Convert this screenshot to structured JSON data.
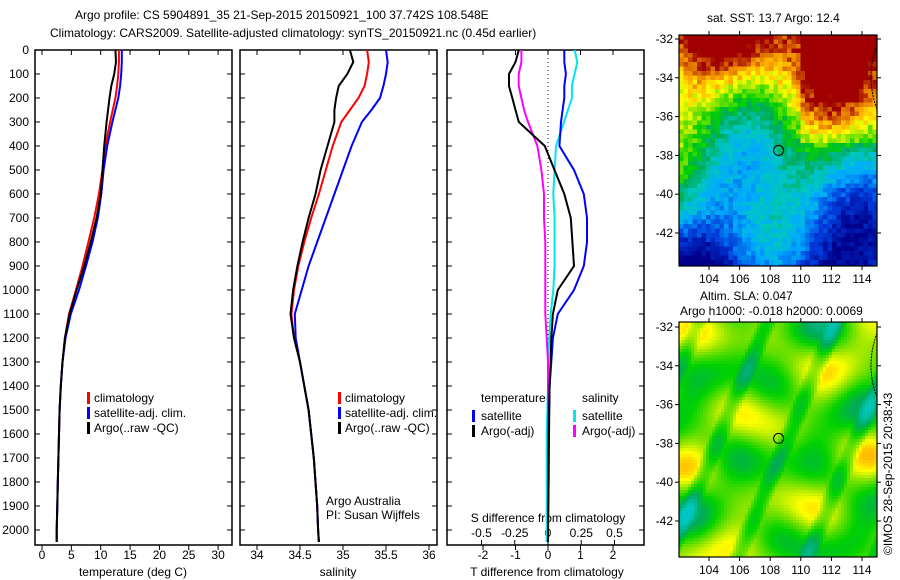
{
  "title_line1": "Argo profile: CS 5904891_35 21-Sep-2015 20150921_100 37.742S 108.548E",
  "title_line2": "Climatology: CARS2009. Satellite-adjusted climatology: synTS_20150921.nc (0.45d earlier)",
  "credit": "©IMOS 28-Sep-2015 20:38:43",
  "colors": {
    "climatology": "#ff0000",
    "satellite": "#0000ff",
    "argo": "#000000",
    "sal_satellite": "#00e5ee",
    "sal_argo": "#ff00ff"
  },
  "chart_data": [
    {
      "type": "line",
      "name": "temperature",
      "xlabel": "temperature (deg C)",
      "ylabel": "depth",
      "xlim": [
        -1,
        31
      ],
      "ylim": [
        2130,
        0
      ],
      "xticks": [
        "0",
        "5",
        "10",
        "15",
        "20",
        "25",
        "30"
      ],
      "yticks": [
        "0",
        "100",
        "200",
        "300",
        "400",
        "500",
        "600",
        "700",
        "800",
        "900",
        "1000",
        "1100",
        "1200",
        "1300",
        "1400",
        "1500",
        "1600",
        "1700",
        "1800",
        "1900",
        "2000"
      ],
      "depth": [
        0,
        50,
        100,
        150,
        200,
        300,
        400,
        500,
        600,
        700,
        800,
        900,
        1000,
        1100,
        1200,
        1300,
        1400,
        1500,
        1600,
        1700,
        1800,
        1900,
        2000,
        2050
      ],
      "series": [
        {
          "name": "climatology",
          "values": [
            13.1,
            13.1,
            13.0,
            12.8,
            12.5,
            11.6,
            10.8,
            10.3,
            9.7,
            8.9,
            7.9,
            6.9,
            5.8,
            4.6,
            3.9,
            3.5,
            3.2,
            3.0,
            2.9,
            2.8,
            2.7,
            2.6,
            2.5,
            2.5
          ]
        },
        {
          "name": "satellite-adj. clim.",
          "values": [
            13.6,
            13.6,
            13.5,
            13.3,
            13.0,
            12.0,
            11.1,
            10.5,
            10.1,
            9.5,
            8.6,
            7.5,
            6.3,
            4.9,
            4.0,
            3.5,
            3.2,
            3.0,
            2.9,
            2.8,
            2.7,
            2.6,
            2.5,
            2.5
          ]
        },
        {
          "name": "Argo(..raw -QC)",
          "values": [
            12.5,
            12.6,
            12.3,
            11.8,
            11.5,
            11.0,
            10.6,
            10.3,
            10.0,
            9.3,
            8.3,
            7.2,
            5.9,
            4.7,
            3.9,
            3.5,
            3.2,
            3.0,
            2.9,
            2.8,
            2.7,
            2.6,
            2.5,
            2.5
          ]
        }
      ],
      "legend": "lower-right"
    },
    {
      "type": "line",
      "name": "salinity",
      "xlabel": "salinity",
      "xlim": [
        33.8,
        36.1
      ],
      "ylim": [
        2130,
        0
      ],
      "xticks": [
        "34",
        "34.5",
        "35",
        "35.5",
        "36"
      ],
      "depth": [
        0,
        50,
        100,
        150,
        200,
        250,
        300,
        400,
        500,
        600,
        700,
        800,
        900,
        1000,
        1100,
        1200,
        1300,
        1400,
        1500,
        1600,
        1700,
        1800,
        1900,
        2000,
        2050
      ],
      "series": [
        {
          "name": "climatology",
          "values": [
            35.28,
            35.3,
            35.28,
            35.25,
            35.18,
            35.08,
            34.98,
            34.88,
            34.8,
            34.72,
            34.63,
            34.55,
            34.48,
            34.43,
            34.4,
            34.43,
            34.5,
            34.55,
            34.6,
            34.63,
            34.66,
            34.68,
            34.7,
            34.71,
            34.72
          ]
        },
        {
          "name": "satellite-adj. clim.",
          "values": [
            35.5,
            35.52,
            35.5,
            35.47,
            35.43,
            35.33,
            35.22,
            35.1,
            35.0,
            34.9,
            34.8,
            34.7,
            34.6,
            34.52,
            34.44,
            34.45,
            34.5,
            34.55,
            34.6,
            34.63,
            34.66,
            34.68,
            34.7,
            34.71,
            34.72
          ]
        },
        {
          "name": "Argo(..raw -QC)",
          "values": [
            35.08,
            35.12,
            35.05,
            34.95,
            34.92,
            34.9,
            34.9,
            34.82,
            34.74,
            34.68,
            34.6,
            34.53,
            34.47,
            34.42,
            34.39,
            34.43,
            34.5,
            34.55,
            34.6,
            34.63,
            34.66,
            34.68,
            34.7,
            34.71,
            34.72
          ]
        }
      ],
      "annotation_lines": [
        "Argo Australia",
        "PI: Susan Wijffels"
      ],
      "legend": "lower-right"
    },
    {
      "type": "line",
      "name": "differences",
      "xlabel": "T difference from climatology",
      "x2label": "S difference from climatology",
      "xlim": [
        -2.8,
        2.8
      ],
      "x2lim": [
        -0.62,
        0.72
      ],
      "ylim": [
        2130,
        0
      ],
      "xticks": [
        "-2",
        "-1",
        "0",
        "1",
        "2"
      ],
      "x2ticks": [
        "-0.5",
        "-0.25",
        "0",
        "0.25",
        "0.5"
      ],
      "depth": [
        0,
        50,
        100,
        150,
        200,
        250,
        300,
        400,
        500,
        600,
        700,
        800,
        900,
        1000,
        1100,
        1200,
        1300,
        1400,
        1600,
        1800,
        2000,
        2050
      ],
      "series": [
        {
          "name": "temperature satellite",
          "axis": "T",
          "values": [
            0.5,
            0.5,
            0.55,
            0.5,
            0.5,
            0.45,
            0.4,
            0.35,
            0.8,
            1.1,
            1.2,
            1.2,
            1.1,
            0.8,
            0.3,
            0.15,
            0.1,
            0.05,
            0.02,
            0.02,
            0.0,
            0.0
          ]
        },
        {
          "name": "temperature Argo(-adj)",
          "axis": "T",
          "values": [
            -0.9,
            -1.0,
            -1.2,
            -1.2,
            -1.1,
            -1.0,
            -0.9,
            -0.1,
            0.2,
            0.5,
            0.7,
            0.75,
            0.8,
            0.3,
            0.15,
            0.1,
            0.08,
            0.05,
            0.03,
            0.02,
            0.0,
            0.0
          ]
        },
        {
          "name": "salinity satellite",
          "axis": "S",
          "values": [
            0.2,
            0.22,
            0.2,
            0.18,
            0.18,
            0.15,
            0.12,
            0.06,
            0.05,
            0.04,
            0.05,
            0.05,
            0.05,
            0.04,
            0.02,
            0.01,
            0.0,
            0.0,
            -0.01,
            -0.01,
            -0.01,
            -0.01
          ]
        },
        {
          "name": "salinity Argo(-adj)",
          "axis": "S",
          "values": [
            -0.2,
            -0.2,
            -0.22,
            -0.22,
            -0.2,
            -0.18,
            -0.15,
            -0.08,
            -0.05,
            -0.03,
            -0.03,
            -0.02,
            -0.02,
            -0.02,
            -0.02,
            -0.01,
            0.0,
            0.0,
            0.0,
            0.0,
            0.0,
            0.0
          ]
        }
      ],
      "legend_headers": [
        "temperature",
        "salinity"
      ],
      "legend_labels": [
        "satellite",
        "Argo(-adj)",
        "satellite",
        "Argo(-adj)"
      ]
    }
  ],
  "maps": [
    {
      "title": "sat. SST: 13.7 Argo: 12.4",
      "lon_ticks": [
        "104",
        "106",
        "108",
        "110",
        "112",
        "114"
      ],
      "lat_ticks": [
        "-32",
        "-34",
        "-36",
        "-38",
        "-40",
        "-42"
      ],
      "marker_lon": 108.548,
      "marker_lat": -37.742
    },
    {
      "title_line1": "Altim. SLA: 0.047",
      "title_line2": "Argo h1000: -0.018 h2000: 0.0069",
      "lon_ticks": [
        "104",
        "106",
        "108",
        "110",
        "112",
        "114"
      ],
      "lat_ticks": [
        "-32",
        "-34",
        "-36",
        "-38",
        "-40",
        "-42"
      ],
      "marker_lon": 108.548,
      "marker_lat": -37.742
    }
  ],
  "legend_labels": [
    "climatology",
    "satellite-adj. clim.",
    "Argo(..raw -QC)"
  ]
}
